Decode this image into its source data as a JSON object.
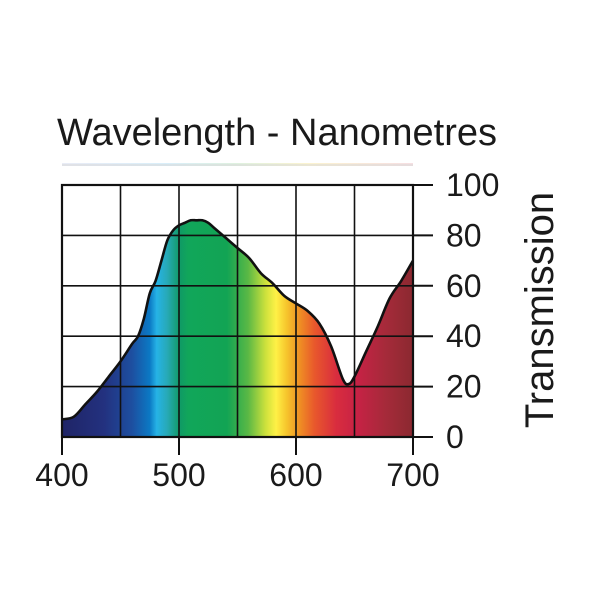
{
  "chart_data": {
    "type": "area",
    "title": "Wavelength - Nanometres",
    "xlabel": "",
    "ylabel": "Transmission",
    "xlim": [
      400,
      700
    ],
    "ylim": [
      0,
      100
    ],
    "grid": true,
    "legend": "none",
    "x_ticks": [
      "400",
      "500",
      "600",
      "700"
    ],
    "y_ticks": [
      "0",
      "20",
      "40",
      "60",
      "80",
      "100"
    ],
    "series": [
      {
        "name": "Transmission",
        "x": [
          400,
          410,
          420,
          430,
          440,
          450,
          460,
          465,
          470,
          475,
          480,
          485,
          490,
          495,
          500,
          505,
          510,
          515,
          520,
          525,
          530,
          540,
          550,
          560,
          570,
          580,
          590,
          600,
          610,
          620,
          630,
          640,
          645,
          650,
          660,
          670,
          680,
          690,
          700
        ],
        "values": [
          7,
          8,
          13,
          18,
          24,
          30,
          37,
          40,
          47,
          57,
          62,
          70,
          78,
          82,
          84,
          85,
          86,
          86,
          86,
          85,
          83,
          79,
          75,
          71,
          65,
          61,
          56,
          53,
          50,
          45,
          36,
          23,
          21,
          24,
          34,
          44,
          55,
          62,
          70
        ]
      }
    ]
  }
}
